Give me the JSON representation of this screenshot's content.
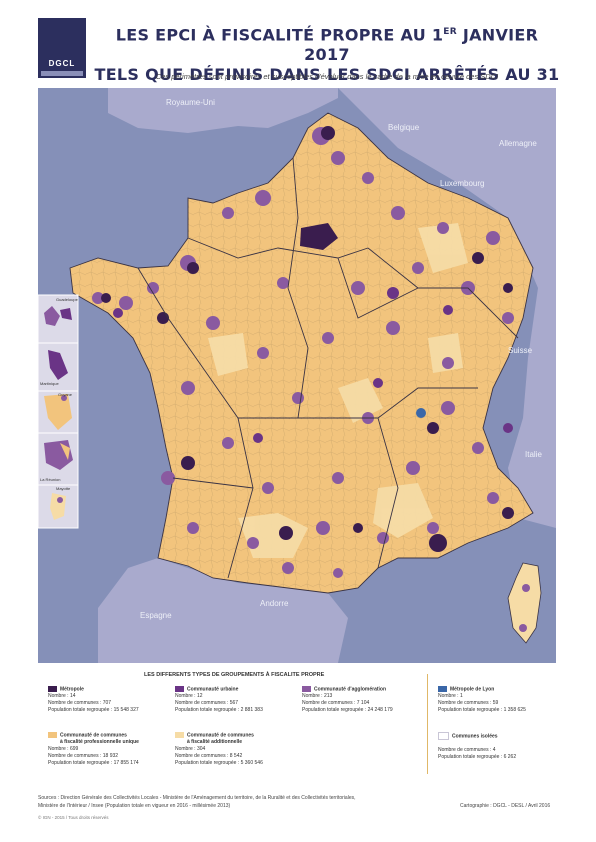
{
  "header": {
    "logo_text": "DGCL",
    "title_line1_pre": "LES EPCI À FISCALITÉ PROPRE AU 1",
    "title_line1_sup": "ER",
    "title_line1_post": " JANVIER 2017",
    "title_line2": "TELS QUE DÉFINIS DANS LES SDCI ARRÊTÉS AU 31 MARS 2016",
    "subtitle": "Ces périmètres sont provisoires et susceptibles d'évoluer dans le cadre de la mise en oeuvre des SDCI"
  },
  "map": {
    "country_labels": [
      "Royaume-Uni",
      "Belgique",
      "Allemagne",
      "Luxembourg",
      "Suisse",
      "Italie",
      "Espagne",
      "Andorre"
    ],
    "inset_labels": [
      "Guadeloupe",
      "Martinique",
      "Guyane",
      "La Réunion",
      "Mayotte"
    ],
    "colors": {
      "sea": "#8590b8",
      "neighbor": "#a9aacd",
      "cc_fpu": "#f2c47d",
      "cc_additionnelle": "#f6dca6",
      "metropole": "#3a1d4e",
      "urbaine": "#6a3486",
      "agglomeration": "#8a5aa0",
      "lyon": "#3a67a8",
      "borders": "#3a3344"
    }
  },
  "legend": {
    "title": "LES DIFFERENTS TYPES DE GROUPEMENTS À FISCALITE PROPRE",
    "items": [
      {
        "name": "Métropole",
        "l1": "Nombre : 14",
        "l2": "Nombre de communes : 707",
        "l3": "Population totale regroupée : 15 548 327"
      },
      {
        "name": "Communauté urbaine",
        "l1": "Nombre : 12",
        "l2": "Nombre de communes : 567",
        "l3": "Population totale regroupée : 2 881 383"
      },
      {
        "name": "Communauté d'agglomération",
        "l1": "Nombre : 213",
        "l2": "Nombre de communes : 7 104",
        "l3": "Population totale regroupée : 24 248 179"
      },
      {
        "name": "Métropole de Lyon",
        "l1": "Nombre : 1",
        "l2": "Nombre de communes : 59",
        "l3": "Population totale regroupée : 1 358 625"
      },
      {
        "name": "Communauté de communes",
        "name2": "à fiscalité professionnelle unique",
        "l1": "Nombre : 699",
        "l2": "Nombre de communes : 18 932",
        "l3": "Population totale regroupée : 17 855 174"
      },
      {
        "name": "Communauté de communes",
        "name2": "à fiscalité additionnelle",
        "l1": "Nombre : 304",
        "l2": "Nombre de communes : 8 542",
        "l3": "Population totale regroupée : 5 360 546"
      },
      {
        "name": "Communes isolées",
        "l1": "Nombre de communes : 4",
        "l2": "Population totale regroupée : 6 262"
      }
    ]
  },
  "footer": {
    "sources_1": "Sources : Direction Générale des Collectivités Locales - Ministère de l'Aménagement du territoire, de la Ruralité et des Collectivités territoriales,",
    "sources_2": "Ministère de l'Intérieur / Insee (Population totale en vigueur en 2016 - millésimée 2013)",
    "credit": "Cartographie : DGCL - DESL / Avril 2016",
    "copyright": "© IGN - 2015 / Tous droits réservés"
  }
}
